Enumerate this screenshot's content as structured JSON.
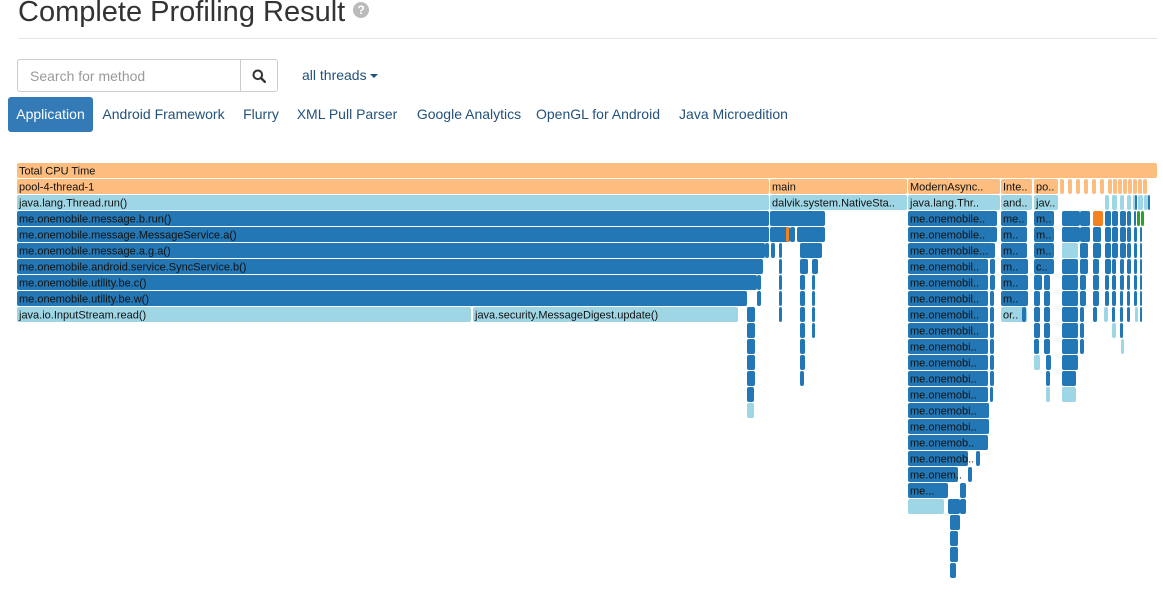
{
  "header": {
    "title": "Complete Profiling Result",
    "help_icon": "?"
  },
  "search": {
    "placeholder": "Search for method",
    "button_icon": "search-icon"
  },
  "threads_dropdown": {
    "label": "all threads"
  },
  "tabs": [
    {
      "label": "Application",
      "active": true
    },
    {
      "label": "Android Framework",
      "active": false
    },
    {
      "label": "Flurry",
      "active": false
    },
    {
      "label": "XML Pull Parser",
      "active": false
    },
    {
      "label": "Google Analytics",
      "active": false
    },
    {
      "label": "OpenGL for Android",
      "active": false
    },
    {
      "label": "Java Microedition",
      "active": false
    }
  ],
  "colors": {
    "total": "#fdbd7f",
    "thread": "#fdbd7f",
    "framework": "#9ed6e6",
    "app": "#2377b4",
    "highlight": "#f58220",
    "green": "#2ca02c"
  },
  "flame": {
    "root": "Total CPU Time",
    "threads": [
      "pool-4-thread-1",
      "main",
      "ModernAsync..",
      "Inte..",
      "po.."
    ],
    "pool_stack": [
      "java.lang.Thread.run()",
      "me.onemobile.message.b.run()",
      "me.onemobile.message.MessageService.a()",
      "me.onemobile.message.a.g.a()",
      "me.onemobile.android.service.SyncService.b()",
      "me.onemobile.utility.be.c()",
      "me.onemobile.utility.be.w()"
    ],
    "pool_leaves": [
      "java.io.InputStream.read()",
      "java.security.MessageDigest.update()"
    ],
    "main_stack": [
      "dalvik.system.NativeSta.."
    ],
    "async_stack": [
      "java.lang.Thr..",
      "me.onemobile..",
      "me.onemobile..",
      "me.onemobile...",
      "me.onemobil..",
      "me.onemobil..",
      "me.onemobil..",
      "me.onemobil..",
      "me.onemobil..",
      "me.onemobi..",
      "me.onemobi..",
      "me.onemobi..",
      "me.onemobi..",
      "me.onemobi..",
      "me.onemobi..",
      "me.onemob..",
      "me.onemob..",
      "me.onem..",
      "me..."
    ],
    "inte_stack": [
      "and..",
      "me..",
      "m..",
      "m..",
      "m..",
      "m..",
      "m..",
      "or.."
    ],
    "po_stack": [
      "jav..",
      "m..",
      "m..",
      "m..",
      "c.."
    ]
  }
}
